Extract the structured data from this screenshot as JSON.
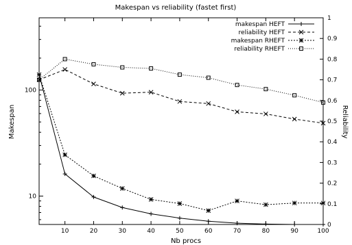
{
  "chart_data": {
    "type": "line",
    "title": "Makespan vs reliability (fastet first)",
    "xlabel": "Nb procs",
    "ylabel": "Makespan",
    "y2label": "Reliability",
    "x": [
      1,
      10,
      20,
      30,
      40,
      50,
      60,
      70,
      80,
      90,
      100
    ],
    "xlim": [
      1,
      100
    ],
    "xticks": [
      "10",
      "20",
      "30",
      "40",
      "50",
      "60",
      "70",
      "80",
      "90",
      "100"
    ],
    "ylim": [
      5.4,
      480
    ],
    "ylog": true,
    "yticks": [
      "10",
      "100"
    ],
    "y2lim": [
      0,
      1
    ],
    "y2ticks": [
      "0",
      "0.1",
      "0.2",
      "0.3",
      "0.4",
      "0.5",
      "0.6",
      "0.7",
      "0.8",
      "0.9",
      "1"
    ],
    "legend_position": "top-right",
    "series": [
      {
        "name": "makespan HEFT",
        "axis": "left",
        "dash": "",
        "marker": "plus",
        "values": [
          140,
          16.2,
          9.8,
          7.8,
          6.8,
          6.2,
          5.8,
          5.55,
          5.45,
          5.4,
          5.4
        ]
      },
      {
        "name": "reliability HEFT",
        "axis": "right",
        "dash": "4,3",
        "marker": "x",
        "values": [
          0.7,
          0.75,
          0.68,
          0.635,
          0.64,
          0.595,
          0.585,
          0.545,
          0.535,
          0.51,
          0.49
        ]
      },
      {
        "name": "makespan RHEFT",
        "axis": "left",
        "dash": "2,2",
        "marker": "star",
        "values": [
          140,
          24.5,
          15.5,
          11.8,
          9.3,
          8.5,
          7.3,
          9.0,
          8.3,
          8.6,
          8.6
        ]
      },
      {
        "name": "reliability RHEFT",
        "axis": "right",
        "dash": "1,2",
        "marker": "square",
        "values": [
          0.7,
          0.8,
          0.775,
          0.76,
          0.755,
          0.725,
          0.71,
          0.675,
          0.655,
          0.625,
          0.59
        ]
      }
    ]
  }
}
